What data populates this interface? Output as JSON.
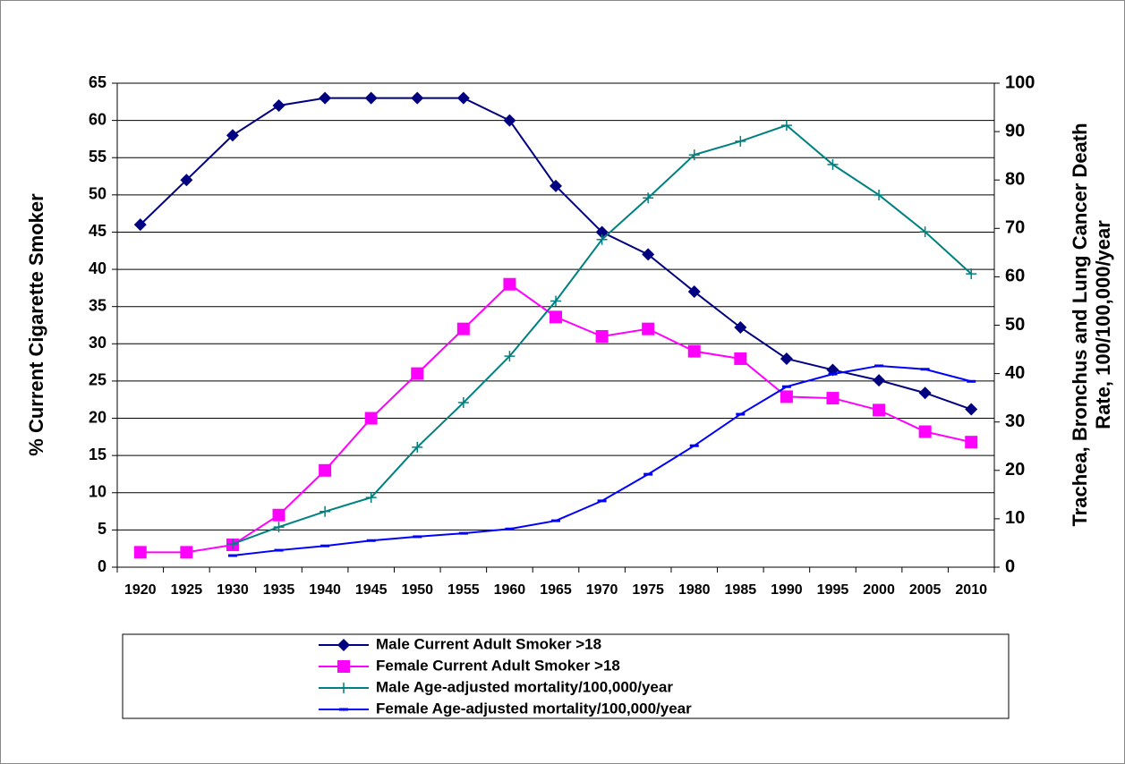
{
  "chart_data": {
    "type": "line",
    "ylabel": "% Current Cigarette Smoker",
    "y2label": [
      "Trachea, Bronchus and Lung Cancer Death",
      "Rate, 100/100,000/year"
    ],
    "categories": [
      "1920",
      "1925",
      "1930",
      "1935",
      "1940",
      "1945",
      "1950",
      "1955",
      "1960",
      "1965",
      "1970",
      "1975",
      "1980",
      "1985",
      "1990",
      "1995",
      "2000",
      "2005",
      "2010"
    ],
    "ylim": [
      0,
      65
    ],
    "yticks": [
      0,
      5,
      10,
      15,
      20,
      25,
      30,
      35,
      40,
      45,
      50,
      55,
      60,
      65
    ],
    "y2lim": [
      0,
      100
    ],
    "y2ticks": [
      0,
      10,
      20,
      30,
      40,
      50,
      60,
      70,
      80,
      90,
      100
    ],
    "grid": true,
    "legend": "bottom",
    "series": [
      {
        "name": "Male Current Adult Smoker >18",
        "color": "#000080",
        "marker": "diamond",
        "values": [
          46,
          52,
          58,
          62,
          63,
          63,
          63,
          63,
          60,
          51.2,
          45,
          42,
          37,
          32.2,
          28,
          26.5,
          25.1,
          23.4,
          21.2
        ]
      },
      {
        "name": "Female Current Adult Smoker >18",
        "color": "#ff00ff",
        "marker": "square",
        "values": [
          2,
          2,
          3,
          7,
          13,
          20,
          26,
          32,
          38,
          33.6,
          31,
          32,
          29,
          28,
          22.9,
          22.7,
          21.1,
          18.2,
          16.8
        ]
      },
      {
        "name": "Male Age-adjusted mortality/100,000/year",
        "color": "#008080",
        "marker": "plus",
        "axis": "y2",
        "values": [
          null,
          null,
          4.8,
          8.3,
          11.5,
          14.4,
          24.8,
          34,
          43.6,
          55,
          67.7,
          76.3,
          85.2,
          88,
          91.3,
          83.2,
          76.9,
          69.3,
          60.6
        ]
      },
      {
        "name": "Female Age-adjusted mortality/100,000/year",
        "color": "#0000ff",
        "marker": "dash",
        "axis": "y2",
        "values": [
          null,
          null,
          2.4,
          3.5,
          4.4,
          5.5,
          6.3,
          7,
          7.9,
          9.6,
          13.7,
          19.2,
          25.1,
          31.6,
          37.3,
          39.9,
          41.6,
          40.9,
          38.4
        ]
      }
    ]
  }
}
